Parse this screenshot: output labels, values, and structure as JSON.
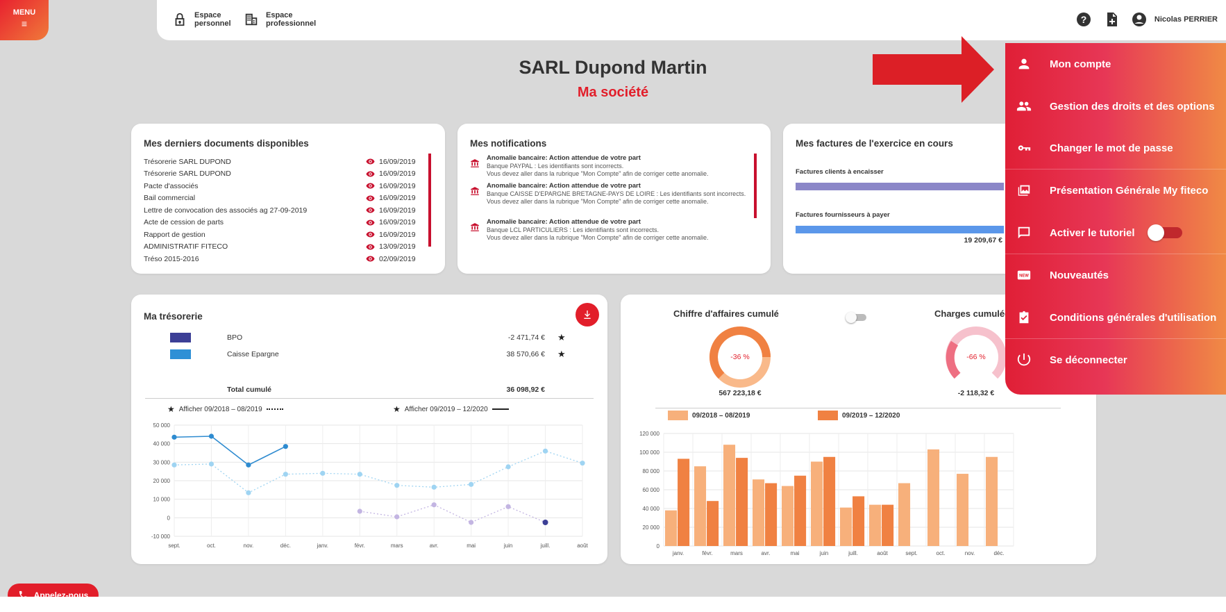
{
  "menu": {
    "label": "MENU",
    "icon": "hamburger-icon"
  },
  "topbar": {
    "espace_personnel": "Espace personnel",
    "espace_professionnel": "Espace professionnel",
    "user_name": "Nicolas PERRIER"
  },
  "company": {
    "name": "SARL Dupond Martin",
    "subtitle": "Ma société"
  },
  "documents": {
    "title": "Mes derniers documents disponibles",
    "items": [
      {
        "name": "Trésorerie SARL DUPOND",
        "date": "16/09/2019"
      },
      {
        "name": "Trésorerie SARL DUPOND",
        "date": "16/09/2019"
      },
      {
        "name": "Pacte d'associés",
        "date": "16/09/2019"
      },
      {
        "name": "Bail commercial",
        "date": "16/09/2019"
      },
      {
        "name": "Lettre de convocation des associés ag 27-09-2019",
        "date": "16/09/2019"
      },
      {
        "name": "Acte de cession de parts",
        "date": "16/09/2019"
      },
      {
        "name": "Rapport de gestion",
        "date": "16/09/2019"
      },
      {
        "name": "ADMINISTRATIF FITECO",
        "date": "13/09/2019"
      },
      {
        "name": "Tréso 2015-2016",
        "date": "02/09/2019"
      }
    ]
  },
  "notifications": {
    "title": "Mes notifications",
    "items": [
      {
        "head": "Anomalie bancaire: Action attendue de votre part",
        "line1": "Banque PAYPAL : Les identifiants sont incorrects.",
        "line2": "Vous devez aller dans la rubrique \"Mon Compte\" afin de corriger cette anomalie."
      },
      {
        "head": "Anomalie bancaire: Action attendue de votre part",
        "line1": "Banque CAISSE D'EPARGNE BRETAGNE-PAYS DE LOIRE : Les identifiants sont incorrects.",
        "line2": "Vous devez aller dans la rubrique \"Mon Compte\" afin de corriger cette anomalie."
      },
      {
        "head": "Anomalie bancaire: Action attendue de votre part",
        "line1": "Banque LCL PARTICULIERS : Les identifiants sont incorrects.",
        "line2": "Vous devez aller dans la rubrique \"Mon Compte\" afin de corriger cette anomalie."
      }
    ]
  },
  "invoices": {
    "title": "Mes factures de l'exercice en cours",
    "clients_label": "Factures clients à encaisser",
    "suppliers_label": "Factures fournisseurs à payer",
    "suppliers_amount": "19 209,67 €",
    "clients_color": "#8b87c8",
    "suppliers_color": "#5b97ea"
  },
  "tresorerie": {
    "title": "Ma trésorerie",
    "accounts": [
      {
        "name": "BPO",
        "amount": "-2 471,74 €",
        "color": "#3c3f96"
      },
      {
        "name": "Caisse Epargne",
        "amount": "38 570,66 €",
        "color": "#2e90d6"
      }
    ],
    "total_label": "Total cumulé",
    "total_amount": "36 098,92 €",
    "legend_prev": "Afficher 09/2018 – 08/2019",
    "legend_curr": "Afficher 09/2019 – 12/2020"
  },
  "ca_panel": {
    "ca_title": "Chiffre d'affaires cumulé",
    "ca_pct": "-36 %",
    "ca_amount": "567 223,18 €",
    "charges_title": "Charges cumulées",
    "charges_pct": "-66 %",
    "charges_amount": "-2 118,32 €",
    "legend_prev": "09/2018 – 08/2019",
    "legend_curr": "09/2019 – 12/2020"
  },
  "chart_data": [
    {
      "type": "line",
      "x": [
        "sept.",
        "oct.",
        "nov.",
        "déc.",
        "janv.",
        "févr.",
        "mars",
        "avr.",
        "mai",
        "juin",
        "juill.",
        "août"
      ],
      "ylim": [
        -10000,
        50000
      ],
      "yticks": [
        -10000,
        0,
        10000,
        20000,
        30000,
        40000,
        50000
      ],
      "ytick_labels": [
        "-10 000",
        "0",
        "10 000",
        "20 000",
        "30 000",
        "40 000",
        "50 000"
      ],
      "series": [
        {
          "values": [
            43500,
            44000,
            28500,
            38500,
            null,
            null,
            null,
            null,
            null,
            null,
            null,
            null
          ],
          "color": "#2e8bd0",
          "style": "solid"
        },
        {
          "values": [
            28500,
            29000,
            13500,
            23500,
            24000,
            23500,
            17500,
            16500,
            18000,
            27500,
            36000,
            29500
          ],
          "color": "#9fd4f2",
          "style": "dotted"
        },
        {
          "values": [
            null,
            null,
            null,
            null,
            null,
            3500,
            500,
            7000,
            -2500,
            6000,
            -2500,
            null
          ],
          "color": "#c3b5e2",
          "style": "dotted"
        }
      ]
    },
    {
      "type": "bar",
      "categories": [
        "janv.",
        "févr.",
        "mars",
        "avr.",
        "mai",
        "juin",
        "juill.",
        "août",
        "sept.",
        "oct.",
        "nov.",
        "déc."
      ],
      "ylim": [
        0,
        120000
      ],
      "yticks": [
        0,
        20000,
        40000,
        60000,
        80000,
        100000,
        120000
      ],
      "ytick_labels": [
        "0",
        "20 000",
        "40 000",
        "60 000",
        "80 000",
        "100 000",
        "120 000"
      ],
      "series": [
        {
          "name": "09/2018 – 08/2019",
          "values": [
            38000,
            85000,
            108000,
            71000,
            64000,
            90000,
            41000,
            44000,
            67000,
            103000,
            77000,
            95000
          ],
          "color": "#f7b07b"
        },
        {
          "name": "09/2019 – 12/2020",
          "values": [
            93000,
            48000,
            94000,
            67000,
            75000,
            95000,
            53000,
            44000,
            null,
            null,
            null,
            null
          ],
          "color": "#f08142"
        }
      ]
    }
  ],
  "dropdown": {
    "items": [
      {
        "label": "Mon compte",
        "icon": "person-icon"
      },
      {
        "label": "Gestion des droits et des options",
        "icon": "people-icon"
      },
      {
        "label": "Changer le mot de passe",
        "icon": "key-icon"
      },
      {
        "label": "Présentation Générale My fiteco",
        "icon": "gallery-icon"
      },
      {
        "label": "Activer le tutoriel",
        "icon": "chat-icon"
      },
      {
        "label": "Nouveautés",
        "icon": "new-icon"
      },
      {
        "label": "Conditions générales d'utilisation",
        "icon": "checklist-icon"
      },
      {
        "label": "Se déconnecter",
        "icon": "power-icon"
      }
    ]
  },
  "call_button": {
    "label": "Appelez-nous"
  }
}
